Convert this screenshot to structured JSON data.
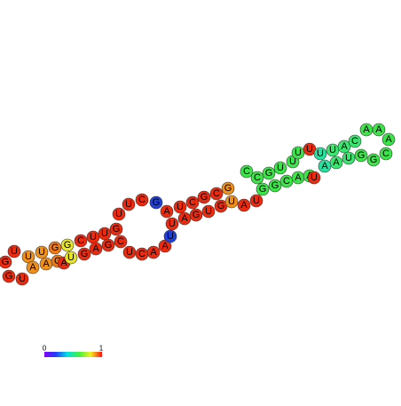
{
  "nodes": [
    {
      "label": "U",
      "color": "#ec2a10"
    },
    {
      "label": "U",
      "color": "#f0901c"
    },
    {
      "label": "U",
      "color": "#f0901c"
    },
    {
      "label": "G",
      "color": "#f07a18"
    },
    {
      "label": "G",
      "color": "#e8e42a"
    },
    {
      "label": "C",
      "color": "#ec2a10"
    },
    {
      "label": "U",
      "color": "#ec2a10"
    },
    {
      "label": "U",
      "color": "#ec2a10"
    },
    {
      "label": "G",
      "color": "#ec2a10"
    },
    {
      "label": "G",
      "color": "#ec2a10"
    },
    {
      "label": "G",
      "color": "#ec2a10"
    },
    {
      "label": "U",
      "color": "#ec2a10"
    },
    {
      "label": "A",
      "color": "#f0901c"
    },
    {
      "label": "A",
      "color": "#f0901c"
    },
    {
      "label": "C",
      "color": "#f07a18"
    },
    {
      "label": "A",
      "color": "#ec2a10"
    },
    {
      "label": "U",
      "color": "#e8e42a"
    },
    {
      "label": "G",
      "color": "#ec2a10"
    },
    {
      "label": "A",
      "color": "#ec2a10"
    },
    {
      "label": "G",
      "color": "#ec2a10"
    },
    {
      "label": "C",
      "color": "#ec2a10"
    },
    {
      "label": "U",
      "color": "#ec2a10"
    },
    {
      "label": "U",
      "color": "#ec2a10"
    },
    {
      "label": "C",
      "color": "#ec2a10"
    },
    {
      "label": "G",
      "color": "#1e40d8"
    },
    {
      "label": "U",
      "color": "#ec2a10"
    },
    {
      "label": "C",
      "color": "#ec2a10"
    },
    {
      "label": "A",
      "color": "#ec2a10"
    },
    {
      "label": "A",
      "color": "#ec2a10"
    },
    {
      "label": "U",
      "color": "#1e40d8"
    },
    {
      "label": "A",
      "color": "#ec2a10"
    },
    {
      "label": "U",
      "color": "#ec2a10"
    },
    {
      "label": "C",
      "color": "#ec2a10"
    },
    {
      "label": "G",
      "color": "#ec2a10"
    },
    {
      "label": "C",
      "color": "#ec2a10"
    },
    {
      "label": "G",
      "color": "#f0901c"
    },
    {
      "label": "U",
      "color": "#ec2a10"
    },
    {
      "label": "A",
      "color": "#ec2a10"
    },
    {
      "label": "G",
      "color": "#ec2a10"
    },
    {
      "label": "U",
      "color": "#ec2a10"
    },
    {
      "label": "G",
      "color": "#ec2a10"
    },
    {
      "label": "U",
      "color": "#f0901c"
    },
    {
      "label": "A",
      "color": "#ec2a10"
    },
    {
      "label": "U",
      "color": "#ec2a10"
    },
    {
      "label": "C",
      "color": "#3ce44a"
    },
    {
      "label": "C",
      "color": "#3ce44a"
    },
    {
      "label": "G",
      "color": "#3ce44a"
    },
    {
      "label": "U",
      "color": "#3ce44a"
    },
    {
      "label": "U",
      "color": "#3ce44a"
    },
    {
      "label": "U",
      "color": "#3ce44a"
    },
    {
      "label": "U",
      "color": "#ec2a10"
    },
    {
      "label": "G",
      "color": "#3ce44a"
    },
    {
      "label": "G",
      "color": "#3ce44a"
    },
    {
      "label": "C",
      "color": "#3ce44a"
    },
    {
      "label": "A",
      "color": "#3ce44a"
    },
    {
      "label": "A",
      "color": "#3ce44a"
    },
    {
      "label": "U",
      "color": "#ec2a10"
    },
    {
      "label": "U",
      "color": "#28e0a0"
    },
    {
      "label": "U",
      "color": "#3ce470"
    },
    {
      "label": "A",
      "color": "#3ce470"
    },
    {
      "label": "C",
      "color": "#3ce470"
    },
    {
      "label": "A",
      "color": "#3ce44a"
    },
    {
      "label": "A",
      "color": "#3ce44a"
    },
    {
      "label": "A",
      "color": "#3ce44a"
    },
    {
      "label": "C",
      "color": "#3ce44a"
    },
    {
      "label": "G",
      "color": "#3ce44a"
    },
    {
      "label": "G",
      "color": "#3ce44a"
    },
    {
      "label": "U",
      "color": "#3ce470"
    },
    {
      "label": "A",
      "color": "#3ce470"
    },
    {
      "label": "A",
      "color": "#28e0a0"
    }
  ],
  "colorbar": {
    "ticks": [
      0,
      1
    ]
  }
}
